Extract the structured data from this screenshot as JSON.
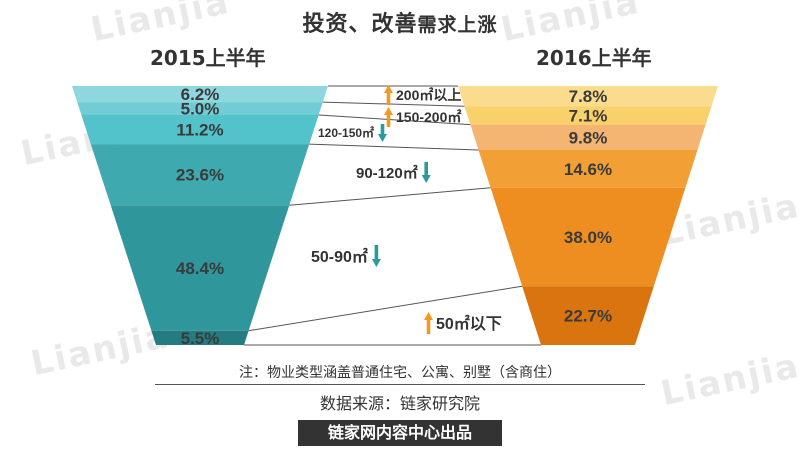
{
  "title_main": "投资、改善",
  "title_sub": "需求上涨",
  "period_left": "2015上半年",
  "period_right": "2016上半年",
  "colors": {
    "left": [
      "#8fd7df",
      "#72ccd6",
      "#52c3cb",
      "#3fa9b0",
      "#2f979c",
      "#247c80"
    ],
    "right": [
      "#fbdc8e",
      "#f9d16a",
      "#f3b571",
      "#f2a036",
      "#ee8e20",
      "#d9740f"
    ],
    "up_arrow": "#f29a1f",
    "down_arrow": "#2a9a9e"
  },
  "chart_data": {
    "type": "funnel-comparison",
    "categories": [
      "200㎡以上",
      "150-200㎡",
      "120-150㎡",
      "90-120㎡",
      "50-90㎡",
      "50㎡以下"
    ],
    "series": [
      {
        "name": "2015上半年",
        "values": [
          6.2,
          5.0,
          11.2,
          23.6,
          48.4,
          5.5
        ]
      },
      {
        "name": "2016上半年",
        "values": [
          7.8,
          7.1,
          9.8,
          14.6,
          38.0,
          22.7
        ]
      }
    ],
    "value_labels": {
      "left": [
        "6.2%",
        "5.0%",
        "11.2%",
        "23.6%",
        "48.4%",
        "5.5%"
      ],
      "right": [
        "7.8%",
        "7.1%",
        "9.8%",
        "14.6%",
        "38.0%",
        "22.7%"
      ]
    },
    "category_labels": [
      "200㎡以上",
      "150-200㎡",
      "120-150㎡",
      "90-120㎡",
      "50-90㎡",
      "50㎡以下"
    ],
    "trend": [
      "up",
      "up",
      "down",
      "down",
      "down",
      "up"
    ]
  },
  "note": "注：物业类型涵盖普通住宅、公寓、别墅（含商住）",
  "source": "数据来源：链家研究院",
  "footer": "链家网内容中心出品",
  "watermark": "Lianjia"
}
